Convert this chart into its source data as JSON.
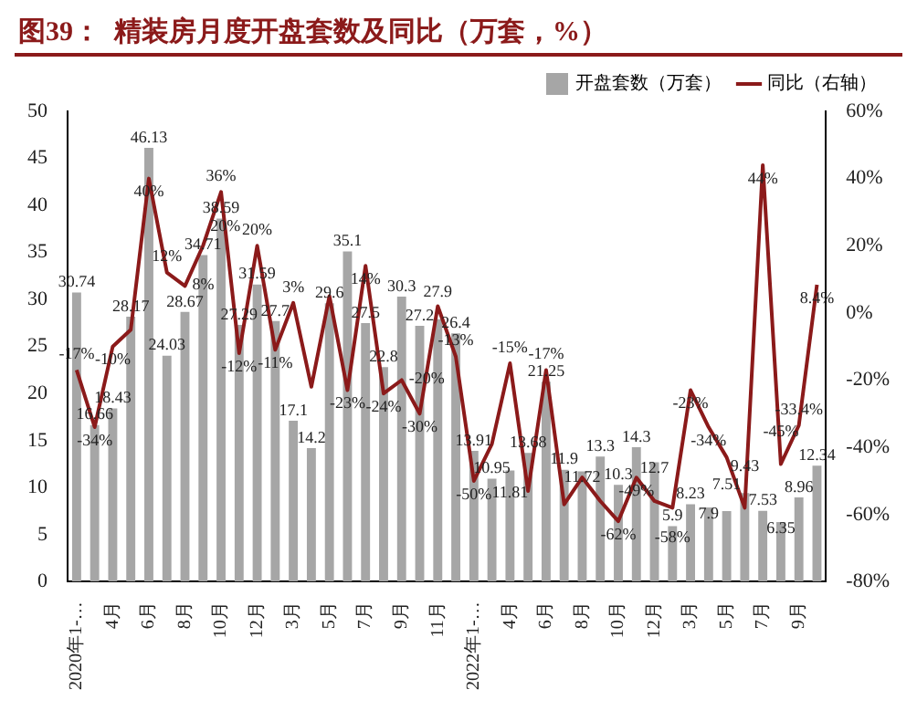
{
  "chart_data": {
    "type": "bar",
    "title": "图39：  精装房月度开盘套数及同比（万套，%）",
    "categories": [
      "2020年1-…",
      null,
      "4月",
      null,
      "6月",
      null,
      "8月",
      null,
      "10月",
      null,
      "12月",
      null,
      "3月",
      null,
      "5月",
      null,
      "7月",
      null,
      "9月",
      null,
      "11月",
      null,
      "2022年1-…",
      null,
      "4月",
      null,
      "6月",
      null,
      "8月",
      null,
      "10月",
      null,
      "12月",
      null,
      "3月",
      null,
      "5月",
      null,
      "7月",
      null,
      "9月",
      null
    ],
    "series": [
      {
        "name": "开盘套数（万套）",
        "color": "#a6a6a6",
        "data_labels": true,
        "values": [
          30.74,
          16.66,
          18.43,
          28.17,
          46.13,
          24.03,
          28.67,
          34.71,
          38.59,
          27.29,
          31.59,
          27.7,
          17.1,
          14.2,
          29.6,
          35.1,
          27.5,
          22.8,
          30.3,
          27.2,
          27.9,
          26.4,
          13.91,
          10.95,
          11.81,
          13.68,
          21.25,
          11.9,
          11.72,
          13.3,
          10.3,
          14.3,
          12.7,
          5.9,
          8.23,
          7.9,
          7.51,
          9.43,
          7.53,
          6.35,
          8.96,
          12.34
        ]
      },
      {
        "name": "同比（右轴）",
        "type": "line",
        "axis": "y2",
        "color": "#8b1a1a",
        "values": [
          -17,
          -34,
          -10,
          -5,
          40,
          12,
          8,
          20,
          36,
          -12,
          20,
          -11,
          3,
          -22,
          5,
          -23,
          14,
          -24,
          -20,
          -30,
          2,
          -13,
          -50,
          -39,
          -15,
          -53,
          -17,
          -57,
          -49,
          -56,
          -62,
          -49,
          -56,
          -58,
          -23,
          -34,
          -43,
          -58,
          44,
          -45,
          -33.4,
          8.4
        ],
        "value_labels": [
          "-17%",
          "-34%",
          "-10%",
          null,
          "40%",
          "12%",
          "8%",
          "20%",
          "36%",
          "-12%",
          "20%",
          "-11%",
          "3%",
          null,
          null,
          "-23%",
          "14%",
          "-24%",
          "-20%",
          "-30%",
          null,
          "-13%",
          "-50%",
          null,
          "-15%",
          null,
          "-17%",
          null,
          null,
          null,
          "-62%",
          "-49%",
          null,
          "-58%",
          "-23%",
          "-34%",
          null,
          null,
          "44%",
          "-45%",
          "-33.4%",
          "8.4%"
        ]
      }
    ],
    "ylim": [
      0,
      50
    ],
    "yticks": [
      0,
      5,
      10,
      15,
      20,
      25,
      30,
      35,
      40,
      45,
      50
    ],
    "y2lim": [
      -80,
      60
    ],
    "y2ticks": [
      {
        "value": -80,
        "label": "-80%"
      },
      {
        "value": -60,
        "label": "-60%"
      },
      {
        "value": -40,
        "label": "-40%"
      },
      {
        "value": -20,
        "label": "-20%"
      },
      {
        "value": 0,
        "label": "0%"
      },
      {
        "value": 20,
        "label": "20%"
      },
      {
        "value": 40,
        "label": "40%"
      },
      {
        "value": 60,
        "label": "60%"
      }
    ],
    "grid": false,
    "legend": "top",
    "marker": "none",
    "line_style": "solid"
  }
}
